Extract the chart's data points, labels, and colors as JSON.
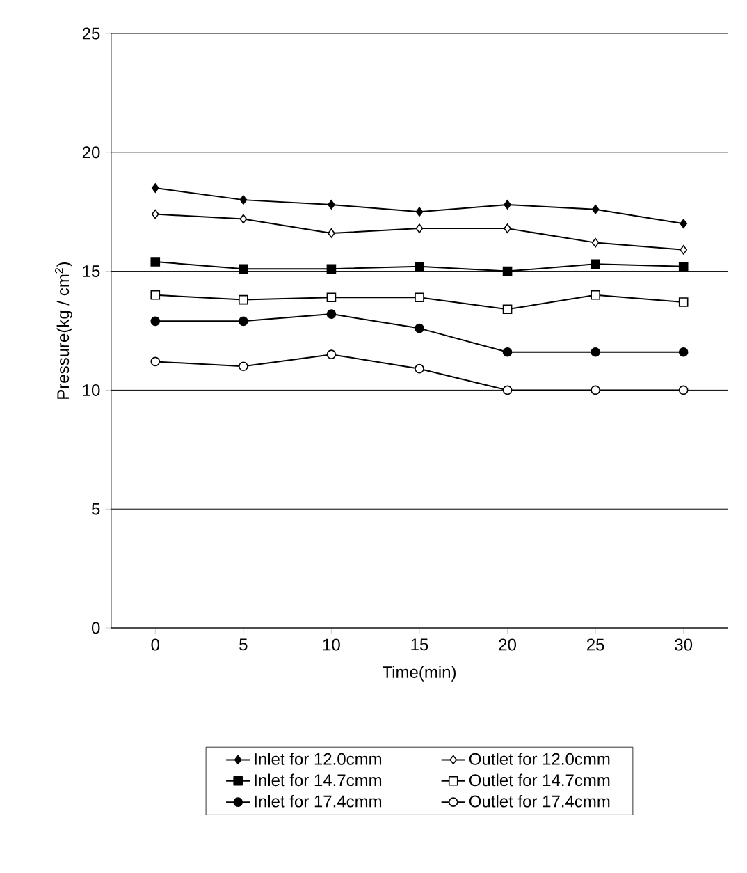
{
  "chart_data": {
    "type": "line",
    "xlabel": "Time(min)",
    "ylabel": "Pressure(kg / cm$^{2}$)",
    "x": [
      0,
      5,
      10,
      15,
      20,
      25,
      30
    ],
    "xlim": [
      -2.5,
      32.5
    ],
    "xticks": [
      0,
      5,
      10,
      15,
      20,
      25,
      30
    ],
    "ylim": [
      0,
      25
    ],
    "yticks": [
      0,
      5,
      10,
      15,
      20,
      25
    ],
    "grid": "y",
    "legend": "bottom",
    "line_style": "solid",
    "series": [
      {
        "name": "Inlet for 12.0cmm",
        "color": "#000000",
        "marker": "diamond",
        "values": [
          18.5,
          18.0,
          17.8,
          17.5,
          17.8,
          17.6,
          17.0
        ]
      },
      {
        "name": "Outlet for 12.0cmm",
        "color": "#000000",
        "colors": [
          "#ffffff",
          "#ffffff",
          "#ffffff",
          "#ffffff",
          "#ffffff",
          "#ffffff",
          "#ffffff"
        ],
        "marker": "diamond",
        "values": [
          17.4,
          17.2,
          16.6,
          16.8,
          16.8,
          16.2,
          15.9
        ]
      },
      {
        "name": "Inlet for 14.7cmm",
        "color": "#000000",
        "marker": "square",
        "values": [
          15.4,
          15.1,
          15.1,
          15.2,
          15.0,
          15.3,
          15.2
        ]
      },
      {
        "name": "Outlet for 14.7cmm",
        "color": "#000000",
        "colors": [
          "#ffffff",
          "#ffffff",
          "#ffffff",
          "#ffffff",
          "#ffffff",
          "#ffffff",
          "#ffffff"
        ],
        "marker": "square",
        "values": [
          14.0,
          13.8,
          13.9,
          13.9,
          13.4,
          14.0,
          13.7
        ]
      },
      {
        "name": "Inlet for 17.4cmm",
        "color": "#000000",
        "marker": "circle",
        "values": [
          12.9,
          12.9,
          13.2,
          12.6,
          11.6,
          11.6,
          11.6
        ]
      },
      {
        "name": "Outlet for 17.4cmm",
        "color": "#000000",
        "colors": [
          "#ffffff",
          "#ffffff",
          "#ffffff",
          "#ffffff",
          "#ffffff",
          "#ffffff",
          "#ffffff"
        ],
        "marker": "circle",
        "values": [
          11.2,
          11.0,
          11.5,
          10.9,
          10.0,
          10.0,
          10.0
        ]
      }
    ]
  }
}
